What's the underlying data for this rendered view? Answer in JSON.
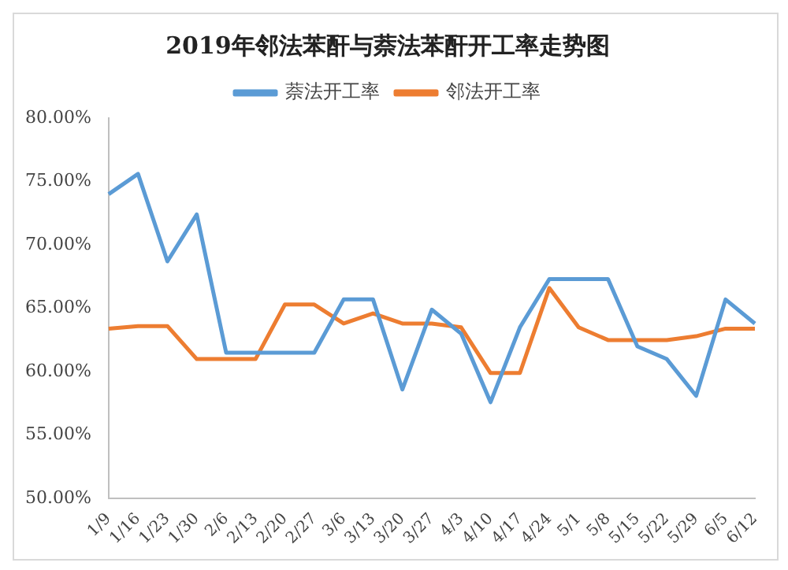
{
  "chart_data": {
    "type": "line",
    "title": "2019年邻法苯酐与萘法苯酐开工率走势图",
    "categories": [
      "1/9",
      "1/16",
      "1/23",
      "1/30",
      "2/6",
      "2/13",
      "2/20",
      "2/27",
      "3/6",
      "3/13",
      "3/20",
      "3/27",
      "4/3",
      "4/10",
      "4/17",
      "4/24",
      "5/1",
      "5/8",
      "5/15",
      "5/22",
      "5/29",
      "6/5",
      "6/12"
    ],
    "series": [
      {
        "name": "萘法开工率",
        "color": "#5b9bd5",
        "values": [
          74,
          75.6,
          68.7,
          72.4,
          61.5,
          61.5,
          61.5,
          61.5,
          65.7,
          65.7,
          58.6,
          64.9,
          63,
          57.6,
          63.5,
          67.3,
          67.3,
          67.3,
          62,
          61,
          58.1,
          65.7,
          63.8
        ]
      },
      {
        "name": "邻法开工率",
        "color": "#ed7d31",
        "values": [
          63.4,
          63.6,
          63.6,
          61,
          61,
          61,
          65.3,
          65.3,
          63.8,
          64.6,
          63.8,
          63.8,
          63.5,
          59.9,
          59.9,
          66.6,
          63.5,
          62.5,
          62.5,
          62.5,
          62.8,
          63.4,
          63.4
        ]
      }
    ],
    "ylim": [
      50,
      80
    ],
    "yticks": [
      {
        "value": 50,
        "label": "50.00%"
      },
      {
        "value": 55,
        "label": "55.00%"
      },
      {
        "value": 60,
        "label": "60.00%"
      },
      {
        "value": 65,
        "label": "65.00%"
      },
      {
        "value": 70,
        "label": "70.00%"
      },
      {
        "value": 75,
        "label": "75.00%"
      },
      {
        "value": 80,
        "label": "80.00%"
      }
    ],
    "grid": false,
    "legend": "top",
    "marker": "none",
    "line_style": "solid"
  }
}
